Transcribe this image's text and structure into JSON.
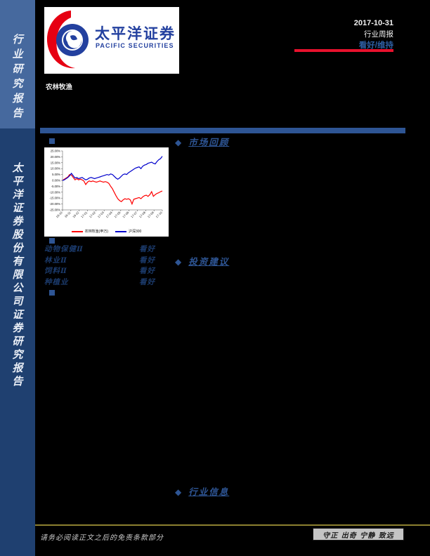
{
  "sidebar": {
    "top_label": "行业研究报告",
    "bottom_label": "太平洋证券股份有限公司证券研究报告"
  },
  "logo": {
    "cn": "太平洋证券",
    "en": "PACIFIC SECURITIES",
    "red": "#E60012",
    "blue": "#23409F"
  },
  "header": {
    "industry": "农林牧渔",
    "date": "2017-10-31",
    "report_type": "行业周报",
    "rating": "看好/维持",
    "rating_color": "#2E5FA3",
    "rule_color": "#E8112D"
  },
  "sections": {
    "bullet": "◆",
    "market_review": "市场回顾",
    "investment_advice": "投资建议",
    "industry_info": "行业信息",
    "accent_color": "#2E5594"
  },
  "ratings": {
    "rows": [
      {
        "name": "动物保健Ⅱ",
        "rating": "看好"
      },
      {
        "name": "林业Ⅱ",
        "rating": "看好"
      },
      {
        "name": "饲料Ⅱ",
        "rating": "看好"
      },
      {
        "name": "种植业",
        "rating": "看好"
      }
    ]
  },
  "footer": {
    "disclaimer": "请务必阅读正文之后的免责条款部分",
    "motto": "守正 出奇 宁静 致远"
  },
  "chart_data": {
    "type": "line",
    "title": "",
    "xlabel": "",
    "ylabel": "",
    "ylim": [
      -25,
      25
    ],
    "grid": false,
    "legend_position": "bottom",
    "ytick_labels": [
      "25.00%",
      "20.00%",
      "15.00%",
      "10.00%",
      "5.00%",
      "0.00%",
      "-5.00%",
      "-10.00%",
      "-15.00%",
      "-20.00%",
      "-25.00%"
    ],
    "x_labels": [
      "16-10",
      "16-11",
      "16-12",
      "17-01",
      "17-02",
      "17-03",
      "17-04",
      "17-05",
      "17-06",
      "17-07",
      "17-08",
      "17-09",
      "17-10"
    ],
    "series": [
      {
        "name": "农林牧渔(申万)",
        "color": "#FF0000",
        "values": [
          0,
          1,
          2,
          3,
          5,
          4.5,
          2.5,
          0.5,
          1.5,
          0.5,
          1,
          0.5,
          -0.5,
          -3.5,
          -1.5,
          -0.5,
          -1,
          -0.5,
          -1,
          -1.5,
          -1,
          -0.5,
          -1,
          -1.5,
          -1,
          -1.5,
          -2.5,
          -5,
          -7,
          -10,
          -13,
          -15.5,
          -17,
          -18,
          -16.5,
          -15.5,
          -16,
          -15.5,
          -16.5,
          -20,
          -16,
          -15.5,
          -15,
          -14.5,
          -15.5,
          -14,
          -13,
          -12.5,
          -13.5,
          -12,
          -9.5,
          -13.5,
          -12,
          -11,
          -10.5,
          -9.5,
          -9
        ]
      },
      {
        "name": "沪深300",
        "color": "#0000CC",
        "values": [
          0,
          0.5,
          1.5,
          2.5,
          4,
          6,
          4,
          2,
          2.5,
          1.5,
          2,
          2.5,
          1.5,
          0.5,
          1,
          2,
          2.5,
          2,
          1.5,
          2,
          2.5,
          3,
          3.5,
          4,
          4.5,
          5,
          4.5,
          5.5,
          5,
          3.5,
          2,
          1,
          2,
          3.5,
          5,
          5.5,
          5,
          6.5,
          7.5,
          8.5,
          9.5,
          10.5,
          11,
          11.5,
          10,
          12,
          13,
          13.5,
          14.5,
          15,
          15.5,
          14.5,
          14,
          16,
          17.5,
          18.5,
          20.5
        ]
      }
    ]
  }
}
